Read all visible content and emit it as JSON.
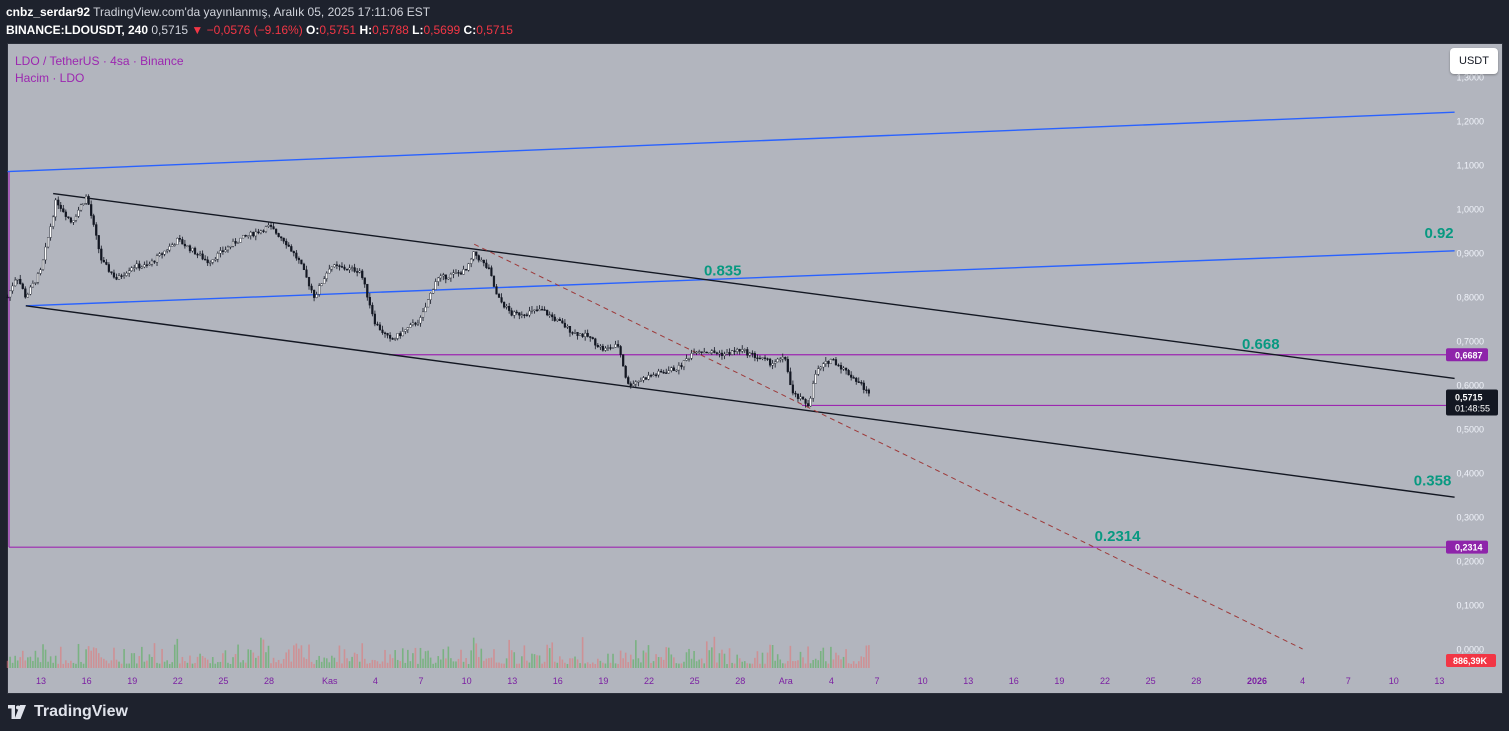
{
  "header": {
    "author": "cnbz_serdar92",
    "published": "TradingView.com'da yayınlanmış, Aralık 05, 2025 17:11:06 EST",
    "symbol": "BINANCE:LDOUSDT, 240",
    "last": "0,5715",
    "change": "▼ −0,0576 (−9.16%)",
    "o_label": "O:",
    "o": "0,5751",
    "h_label": "H:",
    "h": "0,5788",
    "l_label": "L:",
    "l": "0,5699",
    "c_label": "C:",
    "c": "0,5715"
  },
  "legend": {
    "title": "LDO / TetherUS · 4sa · Binance",
    "volume": "Hacim · LDO"
  },
  "currency_button": "USDT",
  "footer": {
    "brand": "TradingView"
  },
  "colors": {
    "background": "#b2b5be",
    "frame": "#1e222d",
    "purple": "#9c27b0",
    "teal": "#089981",
    "blue": "#2962ff",
    "red": "#f23645"
  },
  "chart_data": {
    "type": "candlestick",
    "title": "LDO / TetherUS · 4sa · Binance",
    "currency": "USDT",
    "ylim": [
      0,
      1.3
    ],
    "y_ticks": [
      "0,0000",
      "0,1000",
      "0,2000",
      "0,3000",
      "0,4000",
      "0,5000",
      "0,6000",
      "0,7000",
      "0,8000",
      "0,9000",
      "1,0000",
      "1,1000",
      "1,2000",
      "1,3000"
    ],
    "x_ticks": [
      {
        "label": "13",
        "d": 0
      },
      {
        "label": "16",
        "d": 3
      },
      {
        "label": "19",
        "d": 6
      },
      {
        "label": "22",
        "d": 9
      },
      {
        "label": "25",
        "d": 12
      },
      {
        "label": "28",
        "d": 15
      },
      {
        "label": "Kas",
        "d": 19
      },
      {
        "label": "4",
        "d": 22
      },
      {
        "label": "7",
        "d": 25
      },
      {
        "label": "10",
        "d": 28
      },
      {
        "label": "13",
        "d": 31
      },
      {
        "label": "16",
        "d": 34
      },
      {
        "label": "19",
        "d": 37
      },
      {
        "label": "22",
        "d": 40
      },
      {
        "label": "25",
        "d": 43
      },
      {
        "label": "28",
        "d": 46
      },
      {
        "label": "Ara",
        "d": 49
      },
      {
        "label": "4",
        "d": 52
      },
      {
        "label": "7",
        "d": 55
      },
      {
        "label": "10",
        "d": 58
      },
      {
        "label": "13",
        "d": 61
      },
      {
        "label": "16",
        "d": 64
      },
      {
        "label": "19",
        "d": 67
      },
      {
        "label": "22",
        "d": 70
      },
      {
        "label": "25",
        "d": 73
      },
      {
        "label": "28",
        "d": 76
      },
      {
        "label": "2026",
        "d": 80
      },
      {
        "label": "4",
        "d": 83
      },
      {
        "label": "7",
        "d": 86
      },
      {
        "label": "10",
        "d": 89
      },
      {
        "label": "13",
        "d": 92
      }
    ],
    "price_path": [
      [
        -2.2,
        0.8
      ],
      [
        -1.6,
        0.85
      ],
      [
        -1,
        0.8
      ],
      [
        0,
        0.86
      ],
      [
        1,
        1.02
      ],
      [
        2,
        0.97
      ],
      [
        3,
        1.03
      ],
      [
        4,
        0.88
      ],
      [
        5,
        0.84
      ],
      [
        6,
        0.87
      ],
      [
        7,
        0.87
      ],
      [
        9,
        0.93
      ],
      [
        11,
        0.88
      ],
      [
        13,
        0.93
      ],
      [
        15,
        0.96
      ],
      [
        16,
        0.93
      ],
      [
        17,
        0.88
      ],
      [
        18,
        0.8
      ],
      [
        19,
        0.87
      ],
      [
        21,
        0.86
      ],
      [
        22,
        0.74
      ],
      [
        23,
        0.7
      ],
      [
        25,
        0.75
      ],
      [
        26,
        0.84
      ],
      [
        28,
        0.86
      ],
      [
        28.5,
        0.9
      ],
      [
        29.5,
        0.86
      ],
      [
        30,
        0.8
      ],
      [
        31,
        0.76
      ],
      [
        33,
        0.77
      ],
      [
        35,
        0.72
      ],
      [
        36,
        0.71
      ],
      [
        37,
        0.68
      ],
      [
        38,
        0.69
      ],
      [
        38.6,
        0.6
      ],
      [
        40,
        0.62
      ],
      [
        42,
        0.64
      ],
      [
        43,
        0.68
      ],
      [
        45,
        0.67
      ],
      [
        46,
        0.68
      ],
      [
        48,
        0.65
      ],
      [
        49,
        0.66
      ],
      [
        49.4,
        0.58
      ],
      [
        50.5,
        0.555
      ],
      [
        51,
        0.63
      ],
      [
        52,
        0.66
      ],
      [
        53,
        0.63
      ],
      [
        54,
        0.6
      ],
      [
        54.6,
        0.5715
      ]
    ],
    "volume_max": "886,39K",
    "horizontal_levels": [
      {
        "label": "0,6687",
        "value": 0.6687
      },
      {
        "label": "0,5536",
        "value": 0.5536
      },
      {
        "label": "0,2314",
        "value": 0.2314
      }
    ],
    "last_price": {
      "label": "0,5715",
      "value": 0.5715,
      "countdown": "01:48:55"
    },
    "annotations": [
      {
        "text": "0.835",
        "d": 44.8,
        "value": 0.835
      },
      {
        "text": "0.92",
        "d": 92.2,
        "value": 0.92
      },
      {
        "text": "0.668",
        "d": 80.2,
        "value": 0.668
      },
      {
        "text": "0.358",
        "d": 91.5,
        "value": 0.358
      },
      {
        "text": "0.2314",
        "d": 70.5,
        "value": 0.2314
      }
    ],
    "trendlines": [
      {
        "color": "blue",
        "points": [
          [
            -2.2,
            1.085
          ],
          [
            93,
            1.22
          ]
        ]
      },
      {
        "color": "blue",
        "points": [
          [
            -1,
            0.78
          ],
          [
            93,
            0.905
          ]
        ]
      },
      {
        "color": "black",
        "points": [
          [
            0.8,
            1.035
          ],
          [
            93,
            0.615
          ]
        ]
      },
      {
        "color": "black",
        "points": [
          [
            -1,
            0.78
          ],
          [
            93,
            0.345
          ]
        ]
      },
      {
        "color": "dashed",
        "points": [
          [
            28.5,
            0.92
          ],
          [
            83,
            0.0
          ]
        ]
      }
    ]
  }
}
